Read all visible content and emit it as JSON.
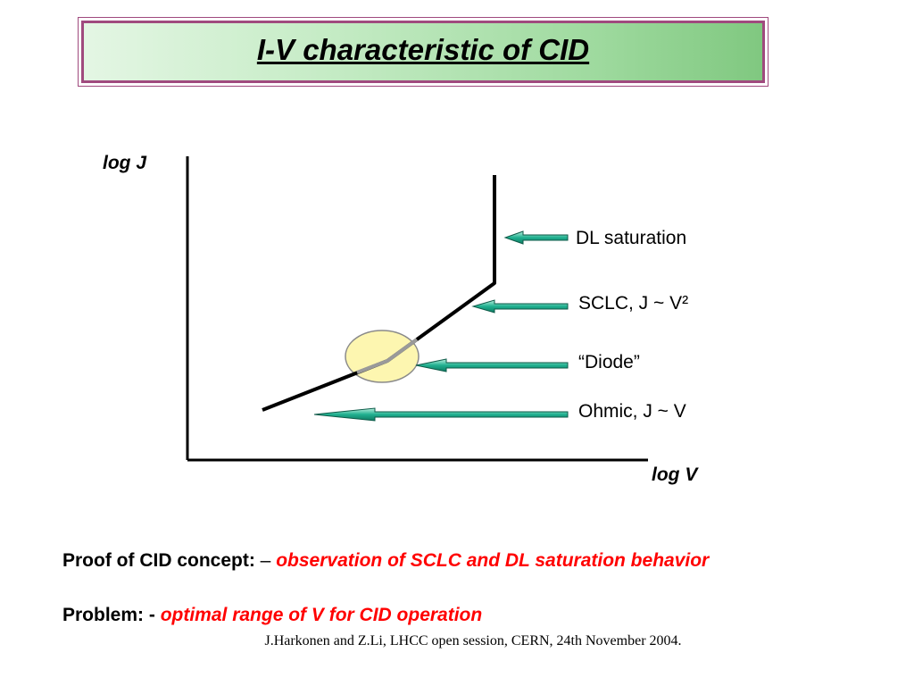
{
  "title": "I-V characteristic of CID",
  "diagram": {
    "y_axis_label": "log J",
    "x_axis_label": "log V",
    "regions": [
      {
        "label": "DL saturation"
      },
      {
        "label": "SCLC, J ~ V²"
      },
      {
        "label": "“Diode”"
      },
      {
        "label": "Ohmic,  J ~ V"
      }
    ],
    "colors": {
      "arrow_fill": "#1fb08f",
      "curve": "#000000",
      "diode_ellipse": "#fdf6b0",
      "title_border": "#a04a7e"
    }
  },
  "statements": {
    "proof_label": "Proof of CID concept:",
    "proof_dash": "–",
    "proof_text": "observation of SCLC and DL saturation behavior",
    "problem_label": "Problem: -",
    "problem_text": "optimal range of V for CID operation"
  },
  "citation": "J.Harkonen and Z.Li, LHCC open session, CERN, 24th November 2004."
}
